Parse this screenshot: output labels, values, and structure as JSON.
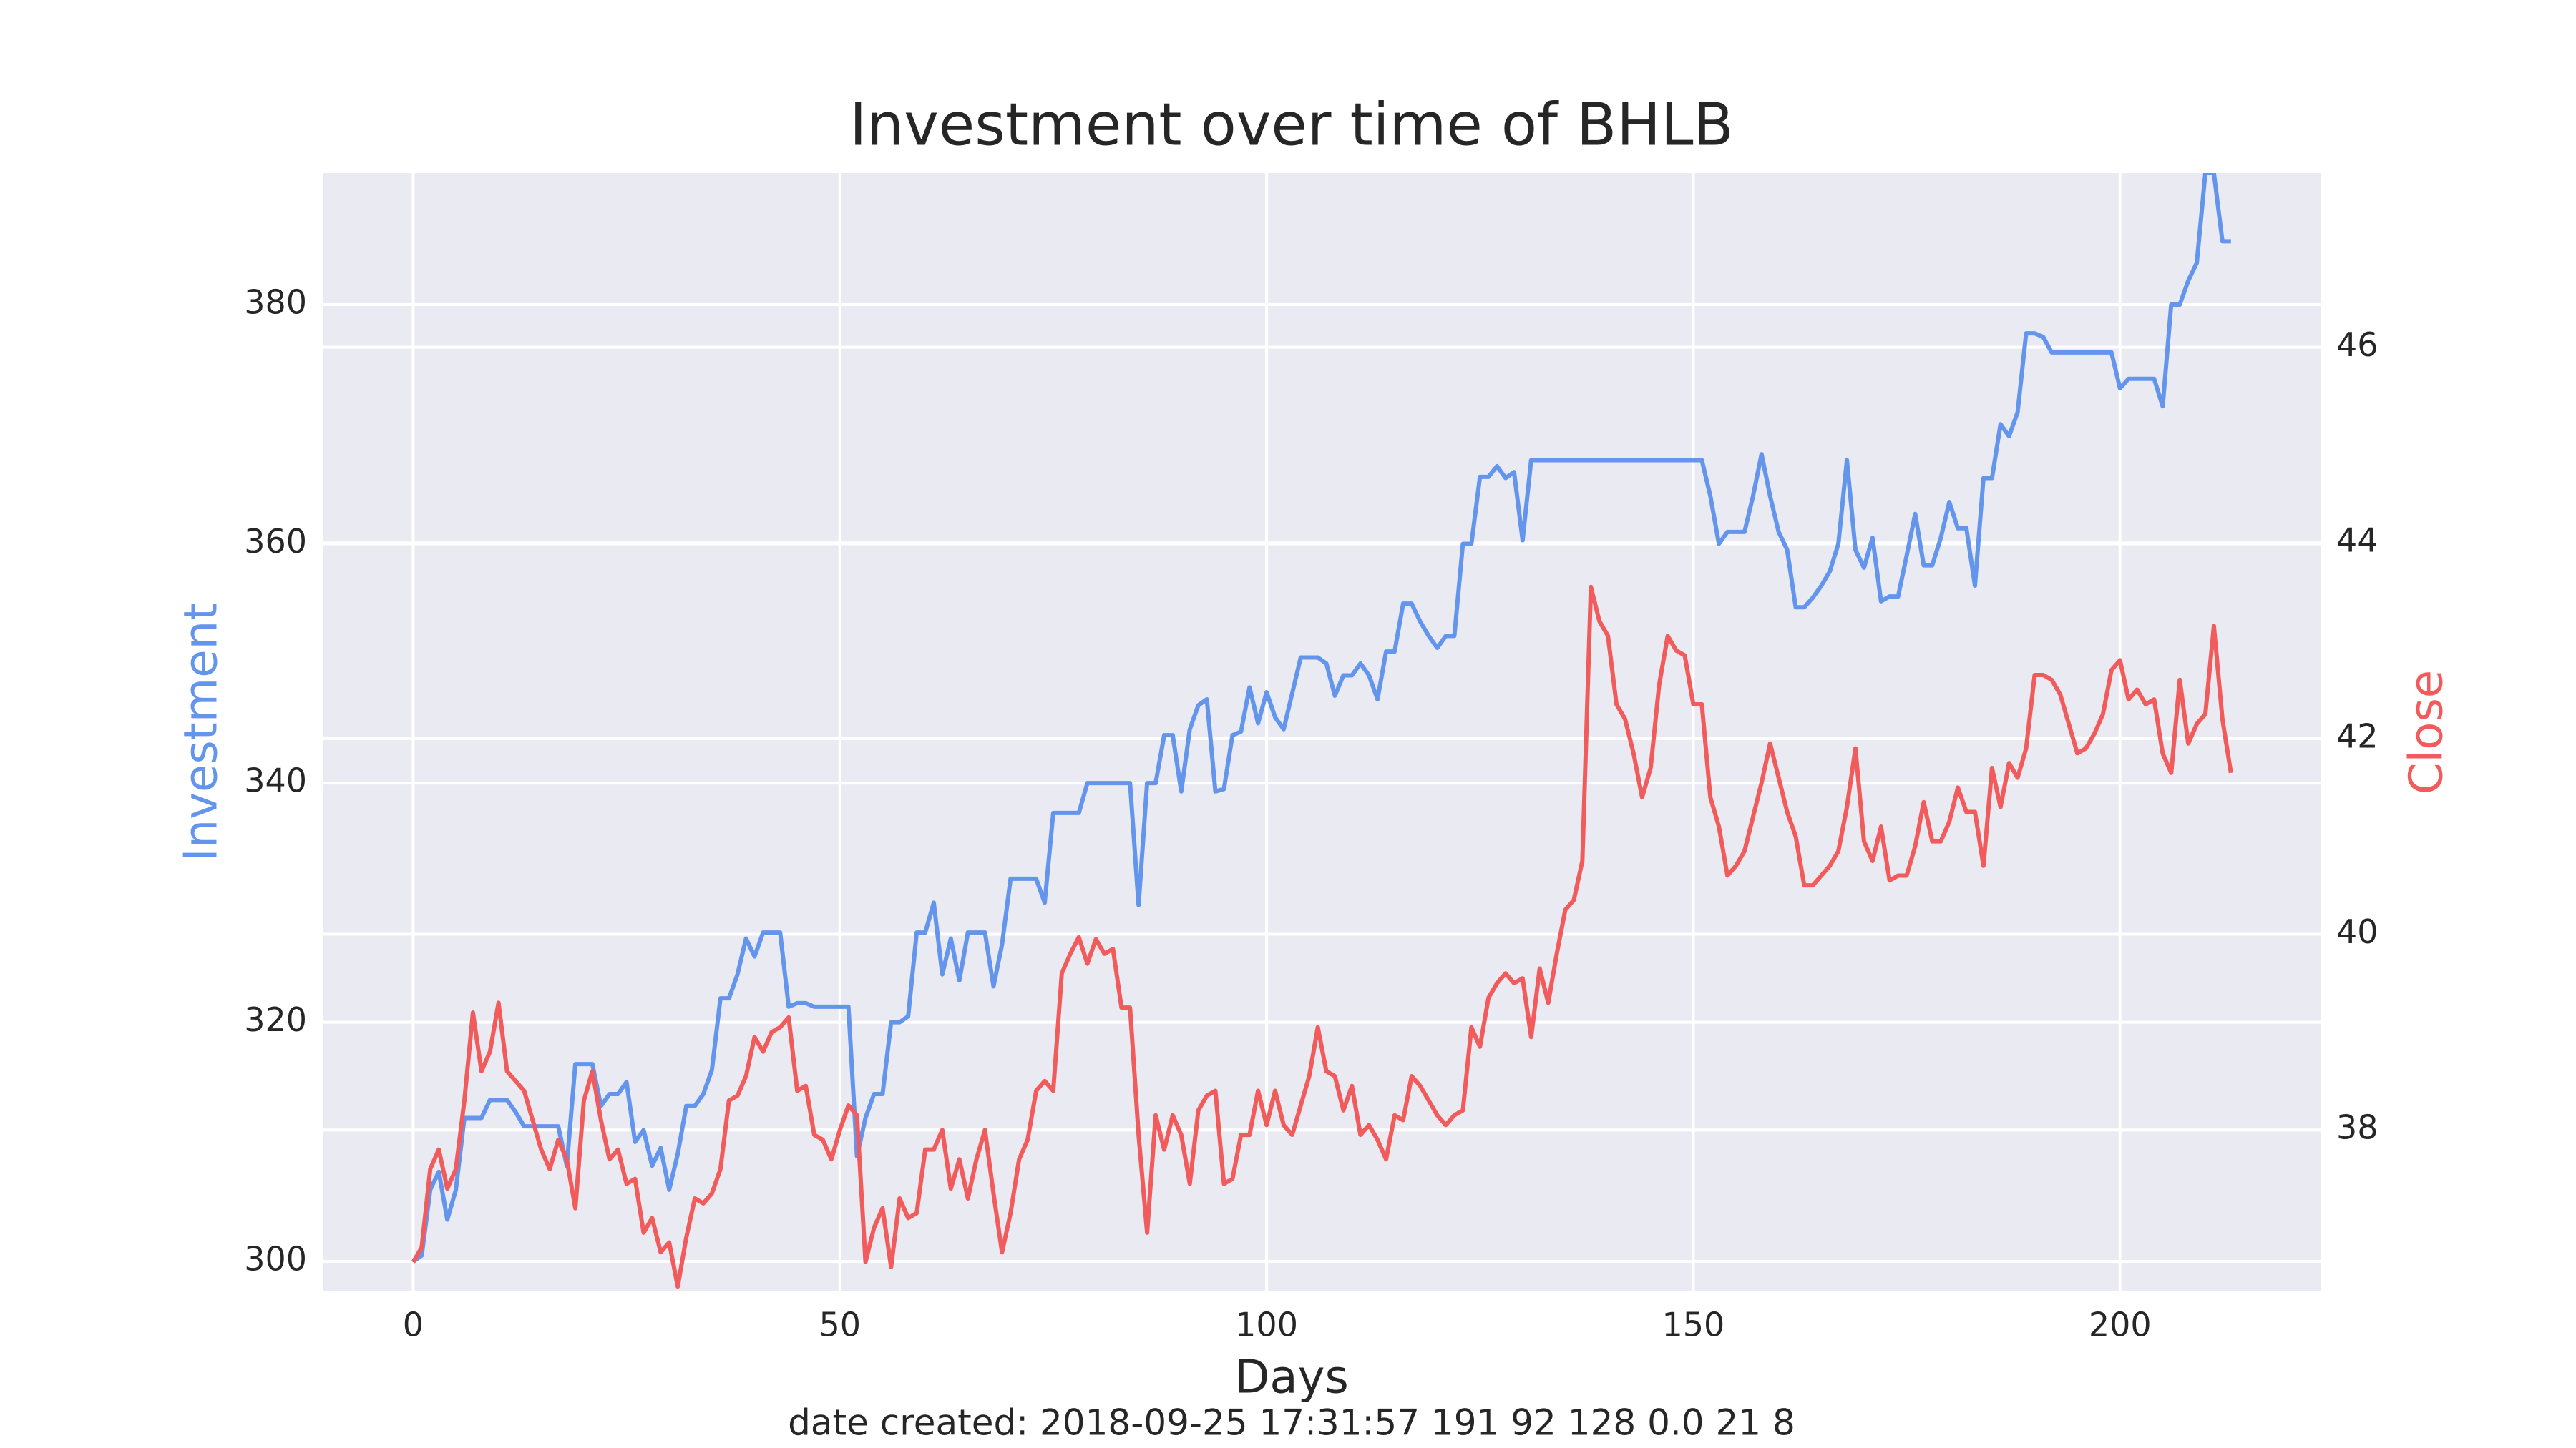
{
  "chart_data": {
    "type": "line",
    "title": "Investment over time of BHLB",
    "xlabel": "Days",
    "ylabel": "Investment",
    "y2label": "Close",
    "footer": "date created: 2018-09-25 17:31:57 191 92 128 0.0 21 8",
    "grid": true,
    "xlim": [
      -10.6,
      223.5
    ],
    "xticks": [
      0,
      50,
      100,
      150,
      200
    ],
    "ylim": [
      297.5,
      391
    ],
    "yticks": [
      300,
      320,
      340,
      360,
      380
    ],
    "y2lim": [
      36.35,
      47.78
    ],
    "y2ticks": [
      38,
      40,
      42,
      44,
      46
    ],
    "x": [
      0,
      1,
      2,
      3,
      4,
      5,
      6,
      7,
      8,
      9,
      10,
      11,
      12,
      13,
      14,
      15,
      16,
      17,
      18,
      19,
      20,
      21,
      22,
      23,
      24,
      25,
      26,
      27,
      28,
      29,
      30,
      31,
      32,
      33,
      34,
      35,
      36,
      37,
      38,
      39,
      40,
      41,
      42,
      43,
      44,
      45,
      46,
      47,
      48,
      49,
      50,
      51,
      52,
      53,
      54,
      55,
      56,
      57,
      58,
      59,
      60,
      61,
      62,
      63,
      64,
      65,
      66,
      67,
      68,
      69,
      70,
      71,
      72,
      73,
      74,
      75,
      76,
      77,
      78,
      79,
      80,
      81,
      82,
      83,
      84,
      85,
      86,
      87,
      88,
      89,
      90,
      91,
      92,
      93,
      94,
      95,
      96,
      97,
      98,
      99,
      100,
      101,
      102,
      103,
      104,
      105,
      106,
      107,
      108,
      109,
      110,
      111,
      112,
      113,
      114,
      115,
      116,
      117,
      118,
      119,
      120,
      121,
      122,
      123,
      124,
      125,
      126,
      127,
      128,
      129,
      130,
      131,
      132,
      133,
      134,
      135,
      136,
      137,
      138,
      139,
      140,
      141,
      142,
      143,
      144,
      145,
      146,
      147,
      148,
      149,
      150,
      151,
      152,
      153,
      154,
      155,
      156,
      157,
      158,
      159,
      160,
      161,
      162,
      163,
      164,
      165,
      166,
      167,
      168,
      169,
      170,
      171,
      172,
      173,
      174,
      175,
      176,
      177,
      178,
      179,
      180,
      181,
      182,
      183,
      184,
      185,
      186,
      187,
      188,
      189,
      190,
      191,
      192,
      193,
      194,
      195,
      196,
      197,
      198,
      199,
      200,
      201,
      202,
      203,
      204,
      205,
      206,
      207,
      208,
      209,
      210,
      211,
      212,
      213
    ],
    "series": [
      {
        "name": "Investment",
        "color": "#6495ed",
        "axis": "y",
        "values": [
          300,
          300.5,
          306,
          307.5,
          303.5,
          306,
          312,
          312,
          312,
          313.5,
          313.5,
          313.5,
          312.5,
          311.3,
          311.3,
          311.3,
          311.3,
          311.3,
          308,
          316.5,
          316.5,
          316.5,
          313,
          314,
          314,
          315,
          310,
          311,
          308,
          309.5,
          306,
          309,
          313,
          313,
          314,
          316,
          322,
          322,
          324,
          327,
          325.5,
          327.5,
          327.5,
          327.5,
          321.3,
          321.6,
          321.6,
          321.3,
          321.3,
          321.3,
          321.3,
          321.3,
          308.8,
          312,
          314,
          314,
          320,
          320,
          320.5,
          327.5,
          327.5,
          330,
          324,
          327,
          323.5,
          327.5,
          327.5,
          327.5,
          323,
          326.5,
          332,
          332,
          332,
          332,
          330,
          337.5,
          337.5,
          337.5,
          337.5,
          340,
          340,
          340,
          340,
          340,
          340,
          329.8,
          340,
          340,
          344,
          344,
          339.3,
          344.5,
          346.5,
          347,
          339.3,
          339.5,
          344,
          344.3,
          348,
          345,
          347.6,
          345.5,
          344.5,
          347.5,
          350.5,
          350.5,
          350.5,
          350,
          347.3,
          349,
          349,
          350,
          349,
          347,
          351,
          351,
          355,
          355,
          353.5,
          352.3,
          351.3,
          352.3,
          352.3,
          360,
          360,
          365.6,
          365.6,
          366.5,
          365.5,
          366,
          360.3,
          367,
          367,
          367,
          367,
          367,
          367,
          367,
          367,
          367,
          367,
          367,
          367,
          367,
          367,
          367,
          367,
          367,
          367,
          367,
          367,
          367,
          364,
          360,
          361,
          361,
          361,
          364,
          367.5,
          364,
          361,
          359.5,
          354.7,
          354.7,
          355.5,
          356.5,
          357.7,
          360,
          367,
          359.5,
          358,
          360.5,
          355.2,
          355.6,
          355.6,
          359,
          362.5,
          358.2,
          358.2,
          360.5,
          363.5,
          361.3,
          361.3,
          356.5,
          365.5,
          365.5,
          370,
          369,
          371,
          377.6,
          377.6,
          377.3,
          376,
          376,
          376,
          376,
          376,
          376,
          376,
          376,
          373,
          373.8,
          373.8,
          373.8,
          373.8,
          371.5,
          380,
          380,
          382,
          383.5,
          391,
          391,
          385.3,
          385.3
        ]
      },
      {
        "name": "Close",
        "color": "#f25b5b",
        "axis": "y2",
        "values": [
          36.65,
          36.8,
          37.6,
          37.8,
          37.4,
          37.6,
          38.3,
          39.2,
          38.6,
          38.8,
          39.3,
          38.6,
          38.5,
          38.4,
          38.1,
          37.8,
          37.6,
          37.9,
          37.7,
          37.2,
          38.3,
          38.6,
          38.1,
          37.7,
          37.8,
          37.45,
          37.5,
          36.95,
          37.1,
          36.75,
          36.85,
          36.4,
          36.9,
          37.3,
          37.25,
          37.35,
          37.6,
          38.3,
          38.35,
          38.55,
          38.95,
          38.8,
          39.0,
          39.05,
          39.15,
          38.4,
          38.45,
          37.95,
          37.9,
          37.7,
          38.0,
          38.25,
          38.15,
          36.65,
          37.0,
          37.2,
          36.6,
          37.3,
          37.1,
          37.15,
          37.8,
          37.8,
          38.0,
          37.4,
          37.7,
          37.3,
          37.7,
          38.0,
          37.35,
          36.75,
          37.15,
          37.7,
          37.9,
          38.4,
          38.5,
          38.4,
          39.6,
          39.8,
          39.97,
          39.7,
          39.95,
          39.8,
          39.85,
          39.25,
          39.25,
          37.95,
          36.95,
          38.15,
          37.8,
          38.15,
          37.95,
          37.45,
          38.2,
          38.35,
          38.4,
          37.45,
          37.5,
          37.95,
          37.95,
          38.4,
          38.05,
          38.4,
          38.05,
          37.95,
          38.25,
          38.55,
          39.05,
          38.6,
          38.55,
          38.2,
          38.45,
          37.95,
          38.05,
          37.9,
          37.7,
          38.15,
          38.1,
          38.55,
          38.45,
          38.3,
          38.15,
          38.05,
          38.15,
          38.2,
          39.05,
          38.85,
          39.35,
          39.5,
          39.6,
          39.5,
          39.55,
          38.95,
          39.65,
          39.3,
          39.8,
          40.25,
          40.35,
          40.75,
          43.55,
          43.2,
          43.05,
          42.35,
          42.2,
          41.85,
          41.4,
          41.7,
          42.55,
          43.05,
          42.9,
          42.85,
          42.35,
          42.35,
          41.4,
          41.1,
          40.6,
          40.7,
          40.85,
          41.2,
          41.55,
          41.95,
          41.6,
          41.25,
          41.0,
          40.5,
          40.5,
          40.6,
          40.7,
          40.85,
          41.3,
          41.9,
          40.95,
          40.75,
          41.1,
          40.55,
          40.6,
          40.6,
          40.9,
          41.35,
          40.95,
          40.95,
          41.15,
          41.5,
          41.25,
          41.25,
          40.7,
          41.7,
          41.3,
          41.75,
          41.6,
          41.9,
          42.65,
          42.65,
          42.6,
          42.45,
          42.15,
          41.85,
          41.9,
          42.05,
          42.25,
          42.7,
          42.8,
          42.4,
          42.5,
          42.35,
          42.4,
          41.85,
          41.65,
          42.6,
          41.95,
          42.15,
          42.25,
          43.15,
          42.2,
          41.65
        ]
      }
    ]
  }
}
